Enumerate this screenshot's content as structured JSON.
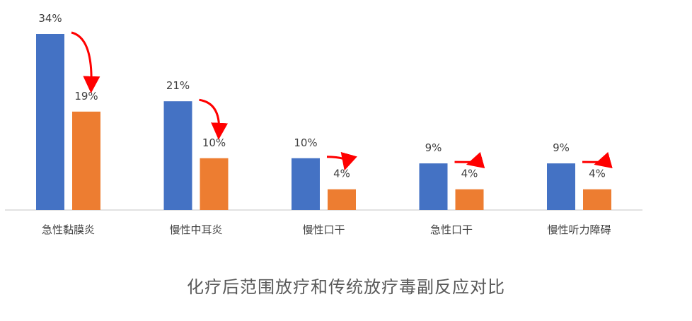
{
  "caption": "化疗后范围放疗和传统放疗毒副反应对比",
  "chart_data": {
    "type": "bar",
    "title": "化疗后范围放疗和传统放疗毒副反应对比",
    "categories": [
      "急性黏膜炎",
      "慢性中耳炎",
      "慢性口干",
      "急性口干",
      "慢性听力障碍"
    ],
    "series": [
      {
        "values": [
          34,
          21,
          10,
          9,
          9
        ],
        "labels": [
          "34%",
          "21%",
          "10%",
          "9%",
          "9%"
        ],
        "color": "#4472C4"
      },
      {
        "values": [
          19,
          10,
          4,
          4,
          4
        ],
        "labels": [
          "19%",
          "10%",
          "4%",
          "4%",
          "4%"
        ],
        "color": "#ED7D31"
      }
    ],
    "ylim": [
      0,
      34
    ],
    "grid": false,
    "legend": "none",
    "annotation_color": "#FF0000",
    "annotations": "curved-arrow-down between each pair"
  }
}
